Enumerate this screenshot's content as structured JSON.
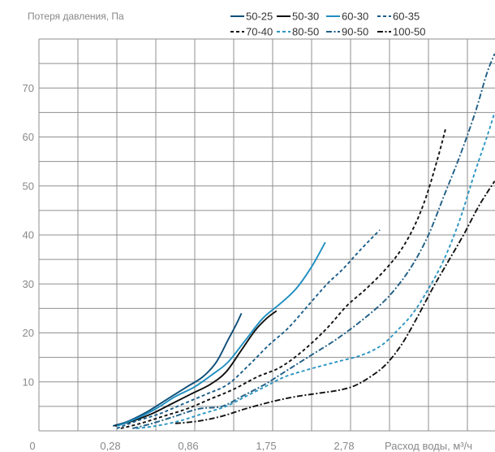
{
  "chart_data": {
    "type": "line",
    "ylabel": "Потеря давления, Па",
    "xlabel": "Расход воды, м³/ч",
    "x_tick_labels": [
      "0",
      "0,28",
      "0,86",
      "1,75",
      "2,78"
    ],
    "y_tick_labels": [
      "10",
      "20",
      "30",
      "40",
      "50",
      "60",
      "70"
    ],
    "ylim": [
      0,
      80
    ],
    "grid": true,
    "legend_position": "top-right",
    "series": [
      {
        "name": "50-25",
        "color": "#0f4e78",
        "dash": "solid",
        "points": [
          [
            1.9,
            1
          ],
          [
            2.3,
            2
          ],
          [
            2.8,
            4
          ],
          [
            3.3,
            6.5
          ],
          [
            3.8,
            9
          ],
          [
            4.2,
            11
          ],
          [
            4.55,
            14
          ],
          [
            4.85,
            18.5
          ],
          [
            5.05,
            21.5
          ],
          [
            5.2,
            24
          ]
        ]
      },
      {
        "name": "50-30",
        "color": "#111111",
        "dash": "solid",
        "points": [
          [
            1.95,
            1
          ],
          [
            2.4,
            2
          ],
          [
            2.9,
            3.5
          ],
          [
            3.4,
            5.5
          ],
          [
            3.9,
            7.5
          ],
          [
            4.4,
            9.5
          ],
          [
            4.8,
            12
          ],
          [
            5.2,
            16.5
          ],
          [
            5.55,
            20.5
          ],
          [
            5.85,
            23
          ],
          [
            6.1,
            24.5
          ]
        ]
      },
      {
        "name": "60-30",
        "color": "#1e8ec0",
        "dash": "solid",
        "points": [
          [
            2.0,
            1
          ],
          [
            2.5,
            2.5
          ],
          [
            3.0,
            4.5
          ],
          [
            3.5,
            7
          ],
          [
            4.0,
            9
          ],
          [
            4.45,
            11.5
          ],
          [
            4.85,
            14
          ],
          [
            5.3,
            18.5
          ],
          [
            5.75,
            23
          ],
          [
            6.2,
            26
          ],
          [
            6.6,
            29
          ],
          [
            7.0,
            33.5
          ],
          [
            7.35,
            38.5
          ]
        ]
      },
      {
        "name": "60-35",
        "color": "#1a5d8a",
        "dash": "dashed",
        "points": [
          [
            2.0,
            0.5
          ],
          [
            2.5,
            2
          ],
          [
            3.1,
            3.5
          ],
          [
            3.7,
            5.5
          ],
          [
            4.3,
            7.5
          ],
          [
            4.85,
            9.5
          ],
          [
            5.4,
            13.5
          ],
          [
            5.9,
            17.5
          ],
          [
            6.4,
            21
          ],
          [
            6.9,
            25.5
          ],
          [
            7.4,
            30
          ],
          [
            7.8,
            33
          ],
          [
            8.2,
            36.5
          ],
          [
            8.5,
            39
          ],
          [
            8.75,
            41
          ]
        ]
      },
      {
        "name": "70-40",
        "color": "#111111",
        "dash": "dashed",
        "points": [
          [
            2.1,
            0.5
          ],
          [
            2.6,
            1.5
          ],
          [
            3.2,
            3
          ],
          [
            3.8,
            4.5
          ],
          [
            4.4,
            6.5
          ],
          [
            5.0,
            8.5
          ],
          [
            5.6,
            11
          ],
          [
            6.2,
            13
          ],
          [
            6.8,
            16.5
          ],
          [
            7.4,
            21
          ],
          [
            7.9,
            25.5
          ],
          [
            8.4,
            29
          ],
          [
            8.9,
            33
          ],
          [
            9.3,
            37
          ],
          [
            9.65,
            42
          ],
          [
            9.95,
            48
          ],
          [
            10.25,
            56
          ],
          [
            10.45,
            62
          ]
        ]
      },
      {
        "name": "80-50",
        "color": "#2b95c2",
        "dash": "dashed",
        "points": [
          [
            2.5,
            0.5
          ],
          [
            3.0,
            1
          ],
          [
            3.6,
            2
          ],
          [
            4.2,
            3.5
          ],
          [
            4.8,
            5
          ],
          [
            5.3,
            7
          ],
          [
            5.8,
            9
          ],
          [
            6.3,
            11
          ],
          [
            6.9,
            12.5
          ],
          [
            7.6,
            14
          ],
          [
            8.3,
            15.5
          ],
          [
            8.8,
            17.5
          ],
          [
            9.2,
            20.5
          ],
          [
            9.6,
            24
          ],
          [
            10.0,
            29
          ],
          [
            10.4,
            35
          ],
          [
            10.8,
            43
          ],
          [
            11.2,
            53
          ],
          [
            11.5,
            60
          ],
          [
            11.7,
            65
          ]
        ]
      },
      {
        "name": "90-50",
        "color": "#1f5e86",
        "dash": "dashdot",
        "points": [
          [
            2.4,
            0.5
          ],
          [
            2.9,
            1.5
          ],
          [
            3.5,
            3
          ],
          [
            4.1,
            4.5
          ],
          [
            4.7,
            5
          ],
          [
            5.2,
            7
          ],
          [
            5.8,
            9.5
          ],
          [
            6.4,
            12.5
          ],
          [
            7.0,
            15.5
          ],
          [
            7.6,
            18.5
          ],
          [
            8.2,
            22
          ],
          [
            8.8,
            26
          ],
          [
            9.2,
            29.5
          ],
          [
            9.6,
            34
          ],
          [
            10.0,
            40
          ],
          [
            10.4,
            48
          ],
          [
            10.8,
            56
          ],
          [
            11.2,
            65
          ],
          [
            11.5,
            73
          ],
          [
            11.7,
            77
          ]
        ]
      },
      {
        "name": "100-50",
        "color": "#111111",
        "dash": "dashdot",
        "points": [
          [
            3.5,
            1.5
          ],
          [
            4.1,
            2
          ],
          [
            4.7,
            3
          ],
          [
            5.3,
            4.5
          ],
          [
            6.0,
            6
          ],
          [
            6.6,
            7
          ],
          [
            7.2,
            7.7
          ],
          [
            7.7,
            8.3
          ],
          [
            8.1,
            9.2
          ],
          [
            8.5,
            11
          ],
          [
            8.9,
            13.5
          ],
          [
            9.3,
            17.5
          ],
          [
            9.7,
            23
          ],
          [
            10.1,
            29
          ],
          [
            10.5,
            34.5
          ],
          [
            10.9,
            40
          ],
          [
            11.3,
            46
          ],
          [
            11.7,
            51
          ]
        ]
      }
    ]
  }
}
